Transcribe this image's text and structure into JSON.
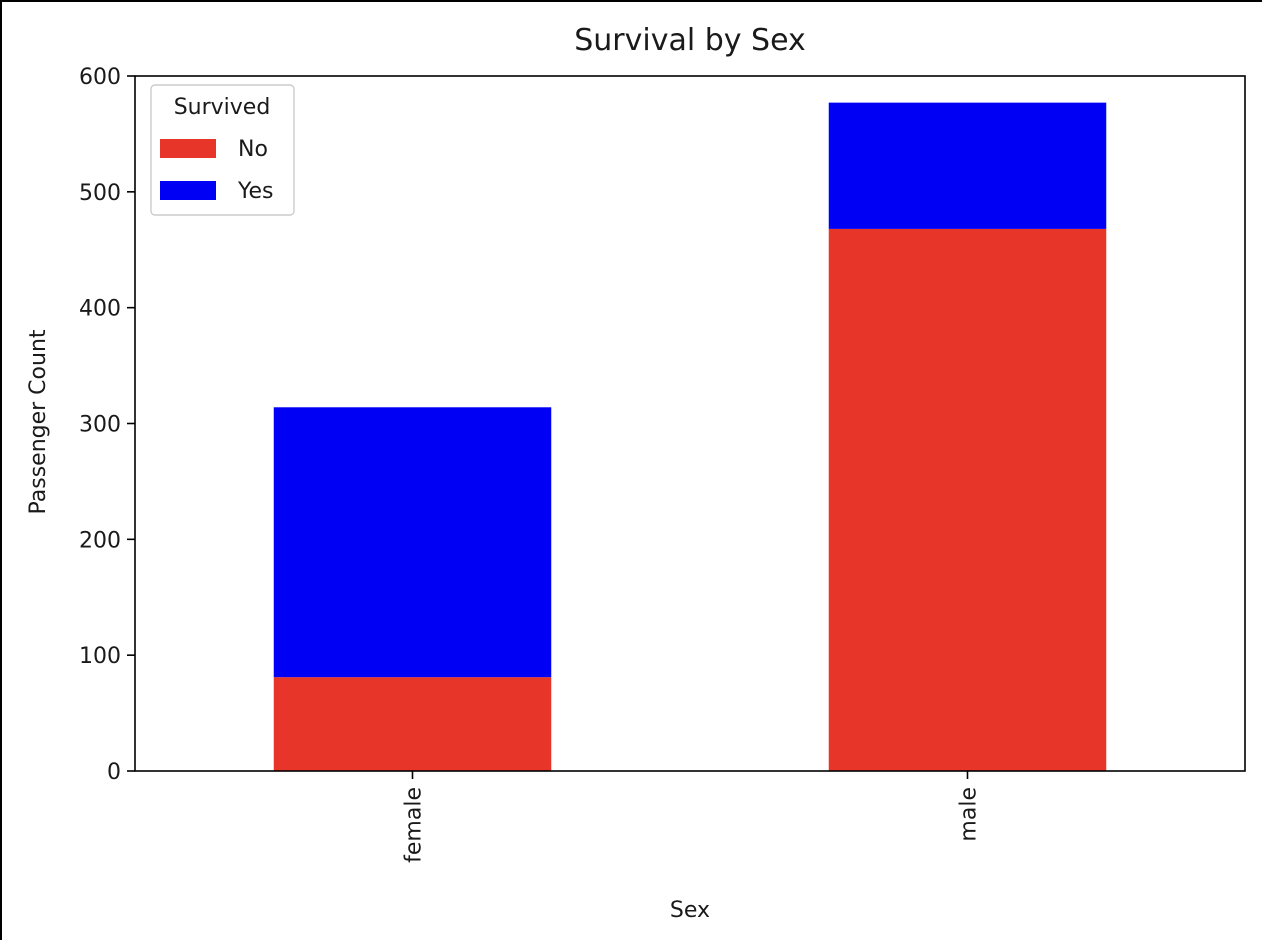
{
  "chart_data": {
    "type": "bar",
    "stacked": true,
    "title": "Survival by Sex",
    "xlabel": "Sex",
    "ylabel": "Passenger Count",
    "categories": [
      "female",
      "male"
    ],
    "series": [
      {
        "name": "No",
        "values": [
          81,
          468
        ],
        "color": "#e8352a"
      },
      {
        "name": "Yes",
        "values": [
          233,
          109
        ],
        "color": "#0000f5"
      }
    ],
    "ylim": [
      0,
      600
    ],
    "yticks": [
      0,
      100,
      200,
      300,
      400,
      500,
      600
    ],
    "legend": {
      "title": "Survived",
      "position": "top-left"
    },
    "grid": false
  }
}
